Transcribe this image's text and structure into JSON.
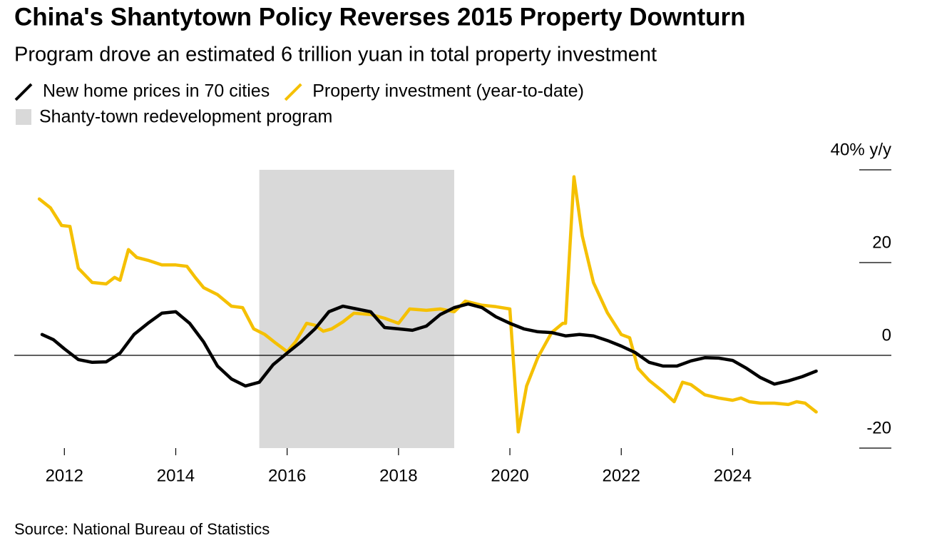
{
  "chart_data": {
    "type": "line",
    "title": "China's Shantytown Policy Reverses 2015 Property Downturn",
    "subtitle": "Program drove an estimated 6 trillion yuan in total property investment",
    "source": "Source: National Bureau of Statistics",
    "xlim": [
      2011.1,
      2026.85
    ],
    "xticks": [
      2012,
      2014,
      2016,
      2018,
      2020,
      2022,
      2024
    ],
    "ylim": [
      -20,
      40
    ],
    "yticks": [
      {
        "value": 40,
        "label": "40% y/y"
      },
      20,
      0,
      -20
    ],
    "shading": {
      "name": "Shanty-town redevelopment program",
      "x": [
        2015.5,
        2019.0
      ],
      "color": "#d9d9d9"
    },
    "series": [
      {
        "name": "New home prices in 70 cities",
        "color": "#000000",
        "x": [
          2011.6,
          2011.8,
          2012.0,
          2012.25,
          2012.5,
          2012.75,
          2013.0,
          2013.25,
          2013.5,
          2013.75,
          2014.0,
          2014.25,
          2014.5,
          2014.75,
          2015.0,
          2015.25,
          2015.5,
          2015.75,
          2016.0,
          2016.25,
          2016.5,
          2016.75,
          2017.0,
          2017.25,
          2017.5,
          2017.75,
          2018.0,
          2018.25,
          2018.5,
          2018.75,
          2019.0,
          2019.25,
          2019.5,
          2019.75,
          2020.0,
          2020.25,
          2020.5,
          2020.75,
          2021.0,
          2021.25,
          2021.5,
          2021.75,
          2022.0,
          2022.25,
          2022.5,
          2022.75,
          2023.0,
          2023.25,
          2023.5,
          2023.75,
          2024.0,
          2024.25,
          2024.5,
          2024.75,
          2025.0,
          2025.25,
          2025.5
        ],
        "values": [
          4.5,
          3.4,
          1.4,
          -0.9,
          -1.5,
          -1.4,
          0.5,
          4.5,
          6.9,
          9.1,
          9.4,
          6.9,
          2.9,
          -2.3,
          -5.1,
          -6.6,
          -5.8,
          -2.0,
          0.5,
          2.9,
          5.7,
          9.4,
          10.6,
          10.0,
          9.4,
          6.0,
          5.7,
          5.4,
          6.3,
          8.8,
          10.3,
          11.1,
          10.3,
          8.3,
          6.9,
          5.7,
          5.1,
          4.9,
          4.2,
          4.5,
          4.2,
          3.2,
          2.0,
          0.6,
          -1.5,
          -2.3,
          -2.3,
          -1.2,
          -0.5,
          -0.6,
          -1.1,
          -2.8,
          -4.8,
          -6.2,
          -5.5,
          -4.6,
          -3.4
        ]
      },
      {
        "name": "Property investment (year-to-date)",
        "color": "#f5c000",
        "x": [
          2011.55,
          2011.75,
          2011.95,
          2012.1,
          2012.25,
          2012.5,
          2012.75,
          2012.9,
          2013.0,
          2013.15,
          2013.3,
          2013.5,
          2013.75,
          2014.0,
          2014.2,
          2014.35,
          2014.5,
          2014.75,
          2015.0,
          2015.2,
          2015.4,
          2015.6,
          2015.8,
          2016.0,
          2016.15,
          2016.35,
          2016.5,
          2016.65,
          2016.8,
          2017.0,
          2017.2,
          2017.5,
          2017.75,
          2018.0,
          2018.2,
          2018.5,
          2018.75,
          2019.0,
          2019.2,
          2019.5,
          2019.75,
          2020.0,
          2020.15,
          2020.3,
          2020.5,
          2020.75,
          2020.95,
          2021.0,
          2021.15,
          2021.3,
          2021.5,
          2021.75,
          2022.0,
          2022.15,
          2022.3,
          2022.5,
          2022.75,
          2022.95,
          2023.1,
          2023.25,
          2023.5,
          2023.75,
          2024.0,
          2024.15,
          2024.3,
          2024.5,
          2024.75,
          2025.0,
          2025.15,
          2025.3,
          2025.5
        ],
        "values": [
          33.7,
          31.8,
          28.0,
          27.8,
          18.8,
          15.7,
          15.4,
          16.8,
          16.2,
          22.8,
          21.1,
          20.5,
          19.5,
          19.5,
          19.2,
          16.8,
          14.6,
          13.1,
          10.6,
          10.3,
          5.7,
          4.5,
          2.6,
          0.8,
          2.9,
          6.9,
          6.5,
          5.2,
          5.7,
          7.2,
          9.1,
          8.8,
          8.0,
          6.9,
          10.0,
          9.7,
          10.0,
          9.4,
          11.7,
          10.8,
          10.5,
          10.0,
          -16.5,
          -6.6,
          -0.5,
          4.9,
          6.9,
          6.9,
          38.5,
          25.7,
          15.7,
          9.2,
          4.5,
          3.8,
          -2.8,
          -5.4,
          -7.8,
          -10.0,
          -5.8,
          -6.3,
          -8.5,
          -9.2,
          -9.7,
          -9.2,
          -10.0,
          -10.3,
          -10.3,
          -10.6,
          -10.0,
          -10.3,
          -12.2
        ]
      }
    ]
  }
}
